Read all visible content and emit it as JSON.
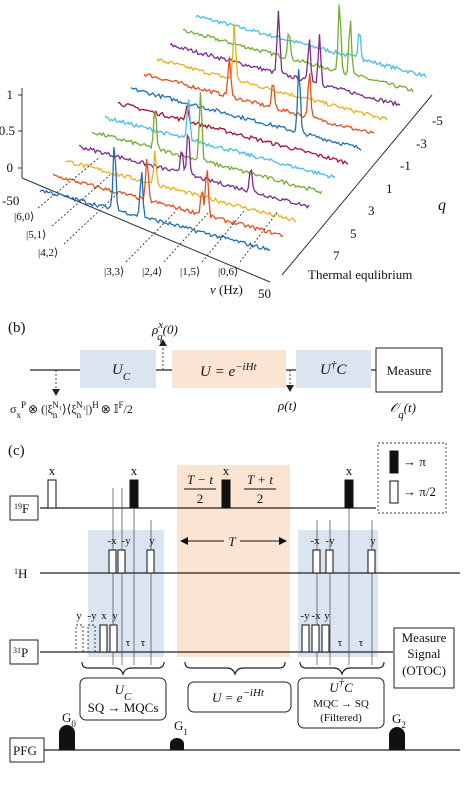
{
  "panel_a": {
    "label_z": [
      "1",
      "0.5",
      "0"
    ],
    "nu_ticks": [
      "-50",
      "50"
    ],
    "nu_label": [
      "ν",
      " (Hz)"
    ],
    "q_ticks": [
      "-5",
      "-3",
      "-1",
      "1",
      "3",
      "5",
      "7"
    ],
    "q_label": "q",
    "thermal_label": "Thermal equlibrium",
    "state_labels": [
      "|6,0⟩",
      "|5,1⟩",
      "|4,2⟩",
      "|3,3⟩",
      "|2,4⟩",
      "|1,5⟩",
      "|0,6⟩"
    ]
  },
  "panel_b": {
    "label": "(b)",
    "uc": [
      "U",
      "C"
    ],
    "u_evo": [
      "U = e",
      "−iHt"
    ],
    "ucd": [
      "U",
      "†",
      "C"
    ],
    "measure": "Measure",
    "rho0": [
      "ρ",
      "x",
      "q",
      "(0)"
    ],
    "initial": [
      "σ",
      "x",
      "P",
      "⊗ (|ξ",
      "n",
      "N₁",
      "⟩⟨ξ",
      "n",
      "N₁",
      "|)",
      "H",
      "⊗ 𝕀",
      "F",
      "/2"
    ],
    "rho_t": "ρ(t)",
    "otoc": [
      "𝒪",
      "q",
      "(t)"
    ]
  },
  "panel_c": {
    "label": "(c)",
    "nuclei": {
      "f19": [
        "19",
        "F"
      ],
      "h1": [
        "1",
        "H"
      ],
      "p31": [
        "31",
        "P"
      ],
      "pfg": "PFG"
    },
    "pulse_labels": {
      "f": [
        "x",
        "x",
        "x",
        "x"
      ],
      "h_left": [
        "-x",
        "-y",
        "y"
      ],
      "h_right": [
        "-x",
        "-y",
        "y"
      ],
      "p_left": [
        "y",
        "-y",
        "x",
        "y"
      ],
      "p_right": [
        "-y",
        "-x",
        "y"
      ],
      "tau": [
        "τ",
        "τ",
        "τ",
        "τ"
      ]
    },
    "evo_left": [
      "T − t",
      "2"
    ],
    "evo_right": [
      "T + t",
      "2"
    ],
    "period": "T",
    "legend": [
      "→ π",
      "→ π/2"
    ],
    "measure": [
      "Measure",
      "Signal",
      "(OTOC)"
    ],
    "blocks": {
      "uc": [
        "U",
        "C",
        "SQ → MQCs"
      ],
      "u": [
        "U = e",
        "−iHt"
      ],
      "ucd": [
        "U",
        "†",
        "C",
        "MQC → SQ",
        "(Filtered)"
      ]
    },
    "gradients": [
      [
        "G",
        "0"
      ],
      [
        "G",
        "1"
      ],
      [
        "G",
        "2"
      ]
    ]
  }
}
